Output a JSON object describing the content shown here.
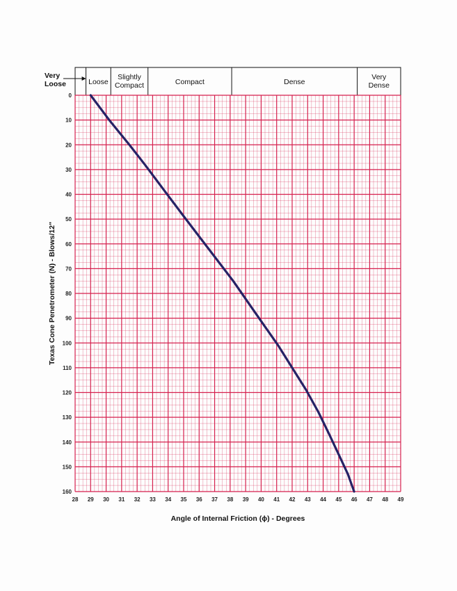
{
  "chart_data": {
    "type": "line",
    "xlabel": "Angle of Internal Friction (ϕ) - Degrees",
    "ylabel": "Texas Cone Penetrometer (N) - Blows/12\"",
    "xlim": [
      28,
      49
    ],
    "ylim": [
      0,
      160
    ],
    "y_inverted": true,
    "x_ticks": [
      28,
      29,
      30,
      31,
      32,
      33,
      34,
      35,
      36,
      37,
      38,
      39,
      40,
      41,
      42,
      43,
      44,
      45,
      46,
      47,
      48,
      49
    ],
    "y_ticks": [
      0,
      10,
      20,
      30,
      40,
      50,
      60,
      70,
      80,
      90,
      100,
      110,
      120,
      130,
      140,
      150,
      160
    ],
    "grid": true,
    "grid_color": "#d6204e",
    "line_color": "#262266",
    "series": [
      {
        "x": [
          29.0,
          30.2,
          31.5,
          32.5,
          33.7,
          34.9,
          36.0,
          37.1,
          38.2,
          39.2,
          40.2,
          41.1,
          42.0,
          42.9,
          43.7,
          44.4,
          45.0,
          45.6,
          46.0
        ],
        "y": [
          0,
          10,
          20,
          28,
          38,
          48,
          57,
          66,
          75,
          84,
          93,
          101,
          110,
          119,
          128,
          137,
          145,
          153,
          160
        ]
      }
    ],
    "density_bands": [
      {
        "label": "Very\nLoose",
        "x_range": [
          28,
          28.7
        ]
      },
      {
        "label": "Loose",
        "x_range": [
          28.7,
          30.3
        ]
      },
      {
        "label": "Slightly\nCompact",
        "x_range": [
          30.3,
          32.7
        ]
      },
      {
        "label": "Compact",
        "x_range": [
          32.7,
          38.1
        ]
      },
      {
        "label": "Dense",
        "x_range": [
          38.1,
          46.2
        ]
      },
      {
        "label": "Very\nDense",
        "x_range": [
          46.2,
          49
        ]
      }
    ]
  }
}
